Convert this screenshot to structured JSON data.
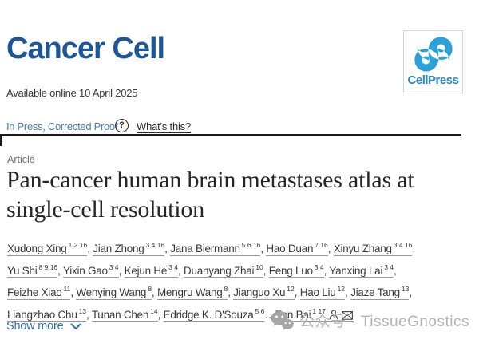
{
  "journal": {
    "name": "Cancer Cell"
  },
  "publisher": {
    "name": "CellPress",
    "logo_blue": "#2da0da",
    "text_blue": "#2a87c7"
  },
  "availability": "Available online 10 April 2025",
  "status": {
    "label": "In Press, Corrected Proof",
    "help_icon": "?",
    "whats_this_label": "What's this?"
  },
  "article": {
    "kind_label": "Article",
    "title_line1": "Pan-cancer human brain metastases atlas at",
    "title_line2": "single-cell resolution"
  },
  "authors": {
    "lines": [
      [
        {
          "name": "Xudong Xing",
          "sup": "1 2 16",
          "sep": ", "
        },
        {
          "name": "Jian Zhong",
          "sup": "3 4 16",
          "sep": ", "
        },
        {
          "name": "Jana Biermann",
          "sup": "5 6 16",
          "sep": ", "
        },
        {
          "name": "Hao Duan",
          "sup": "7 16",
          "sep": ", "
        },
        {
          "name": "Xinyu Zhang",
          "sup": "3 4 16",
          "sep": ","
        }
      ],
      [
        {
          "name": "Yu Shi",
          "sup": "8 9 16",
          "sep": ", "
        },
        {
          "name": "Yixin Gao",
          "sup": "3 4",
          "sep": ", "
        },
        {
          "name": "Kejun He",
          "sup": "3 4",
          "sep": ", "
        },
        {
          "name": "Duanyang Zhai",
          "sup": "10",
          "sep": ", "
        },
        {
          "name": "Feng Luo",
          "sup": "3 4",
          "sep": ", "
        },
        {
          "name": "Yanxing Lai",
          "sup": "3 4",
          "sep": ","
        }
      ],
      [
        {
          "name": "Feizhe Xiao",
          "sup": "11",
          "sep": ", "
        },
        {
          "name": "Wenying Wang",
          "sup": "8",
          "sep": ", "
        },
        {
          "name": "Mengru Wang",
          "sup": "8",
          "sep": ", "
        },
        {
          "name": "Jianguo Xu",
          "sup": "12",
          "sep": ", "
        },
        {
          "name": "Hao Liu",
          "sup": "12",
          "sep": ", "
        },
        {
          "name": "Jiaze Tang",
          "sup": "13",
          "sep": ","
        }
      ],
      [
        {
          "name": "Liangzhao Chu",
          "sup": "13",
          "sep": ", "
        },
        {
          "name": "Tunan Chen",
          "sup": "14",
          "sep": ", "
        },
        {
          "name": "Edridge K. D'Souza",
          "sup": "5 6",
          "sep": "…"
        },
        {
          "name": "Fan Bai",
          "sup": "1 17",
          "icons": true,
          "sep": ""
        }
      ]
    ],
    "show_more_label": "Show more"
  },
  "watermark": {
    "text": "公众号 · TissueGnostics"
  },
  "colors": {
    "journal_blue": "#1f5796",
    "inpress_blue": "#4a7dad",
    "link_blue": "#2e6ea9",
    "title_text": "#262626",
    "divider": "#1b1b1b",
    "watermark_gray": "#b3b3b3"
  }
}
